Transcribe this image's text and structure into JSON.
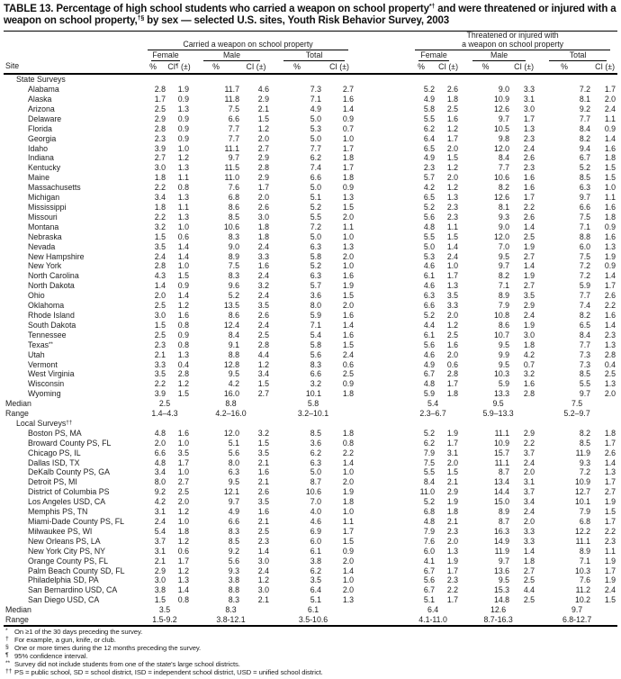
{
  "title": {
    "part1": "TABLE 13. Percentage of high school students who carried a weapon on school property",
    "sup1": "*†",
    "part2": " and were threatened or injured with a weapon on school property,",
    "sup2": "†§",
    "part3": " by sex — selected U.S. sites, Youth Risk Behavior Survey, 2003"
  },
  "header": {
    "site": "Site",
    "groups": [
      {
        "title_lines": [
          "Carried a weapon on school property"
        ],
        "sex": [
          "Female",
          "Male",
          "Total"
        ],
        "cols": [
          "%",
          "CI¶ (±)",
          "%",
          "CI (±)",
          "%",
          "CI (±)"
        ]
      },
      {
        "title_lines": [
          "Threatened or injured with",
          "a weapon on school property"
        ],
        "sex": [
          "Female",
          "Male",
          "Total"
        ],
        "cols": [
          "%",
          "CI (±)",
          "%",
          "CI (±)",
          "%",
          "CI (±)"
        ]
      }
    ]
  },
  "median_label": "Median",
  "range_label": "Range",
  "sections": [
    {
      "label": "State Surveys",
      "rows": [
        [
          "Alabama",
          "2.8",
          "1.9",
          "11.7",
          "4.6",
          "7.3",
          "2.7",
          "5.2",
          "2.6",
          "9.0",
          "3.3",
          "7.2",
          "1.7"
        ],
        [
          "Alaska",
          "1.7",
          "0.9",
          "11.8",
          "2.9",
          "7.1",
          "1.6",
          "4.9",
          "1.8",
          "10.9",
          "3.1",
          "8.1",
          "2.0"
        ],
        [
          "Arizona",
          "2.5",
          "1.3",
          "7.5",
          "2.1",
          "4.9",
          "1.4",
          "5.8",
          "2.5",
          "12.6",
          "3.0",
          "9.2",
          "2.4"
        ],
        [
          "Delaware",
          "2.9",
          "0.9",
          "6.6",
          "1.5",
          "5.0",
          "0.9",
          "5.5",
          "1.6",
          "9.7",
          "1.7",
          "7.7",
          "1.1"
        ],
        [
          "Florida",
          "2.8",
          "0.9",
          "7.7",
          "1.2",
          "5.3",
          "0.7",
          "6.2",
          "1.2",
          "10.5",
          "1.3",
          "8.4",
          "0.9"
        ],
        [
          "Georgia",
          "2.3",
          "0.9",
          "7.7",
          "2.0",
          "5.0",
          "1.0",
          "6.4",
          "1.7",
          "9.8",
          "2.3",
          "8.2",
          "1.4"
        ],
        [
          "Idaho",
          "3.9",
          "1.0",
          "11.1",
          "2.7",
          "7.7",
          "1.7",
          "6.5",
          "2.0",
          "12.0",
          "2.4",
          "9.4",
          "1.6"
        ],
        [
          "Indiana",
          "2.7",
          "1.2",
          "9.7",
          "2.9",
          "6.2",
          "1.8",
          "4.9",
          "1.5",
          "8.4",
          "2.6",
          "6.7",
          "1.8"
        ],
        [
          "Kentucky",
          "3.0",
          "1.3",
          "11.5",
          "2.8",
          "7.4",
          "1.7",
          "2.3",
          "1.2",
          "7.7",
          "2.3",
          "5.2",
          "1.5"
        ],
        [
          "Maine",
          "1.8",
          "1.1",
          "11.0",
          "2.9",
          "6.6",
          "1.8",
          "5.7",
          "2.0",
          "10.6",
          "1.6",
          "8.5",
          "1.5"
        ],
        [
          "Massachusetts",
          "2.2",
          "0.8",
          "7.6",
          "1.7",
          "5.0",
          "0.9",
          "4.2",
          "1.2",
          "8.2",
          "1.6",
          "6.3",
          "1.0"
        ],
        [
          "Michigan",
          "3.4",
          "1.3",
          "6.8",
          "2.0",
          "5.1",
          "1.3",
          "6.5",
          "1.3",
          "12.6",
          "1.7",
          "9.7",
          "1.1"
        ],
        [
          "Mississippi",
          "1.8",
          "1.1",
          "8.6",
          "2.6",
          "5.2",
          "1.5",
          "5.2",
          "2.3",
          "8.1",
          "2.2",
          "6.6",
          "1.6"
        ],
        [
          "Missouri",
          "2.2",
          "1.3",
          "8.5",
          "3.0",
          "5.5",
          "2.0",
          "5.6",
          "2.3",
          "9.3",
          "2.6",
          "7.5",
          "1.8"
        ],
        [
          "Montana",
          "3.2",
          "1.0",
          "10.6",
          "1.8",
          "7.2",
          "1.1",
          "4.8",
          "1.1",
          "9.0",
          "1.4",
          "7.1",
          "0.9"
        ],
        [
          "Nebraska",
          "1.5",
          "0.6",
          "8.3",
          "1.8",
          "5.0",
          "1.0",
          "5.5",
          "1.5",
          "12.0",
          "2.5",
          "8.8",
          "1.6"
        ],
        [
          "Nevada",
          "3.5",
          "1.4",
          "9.0",
          "2.4",
          "6.3",
          "1.3",
          "5.0",
          "1.4",
          "7.0",
          "1.9",
          "6.0",
          "1.3"
        ],
        [
          "New Hampshire",
          "2.4",
          "1.4",
          "8.9",
          "3.3",
          "5.8",
          "2.0",
          "5.3",
          "2.4",
          "9.5",
          "2.7",
          "7.5",
          "1.9"
        ],
        [
          "New York",
          "2.8",
          "1.0",
          "7.5",
          "1.6",
          "5.2",
          "1.0",
          "4.6",
          "1.0",
          "9.7",
          "1.4",
          "7.2",
          "0.9"
        ],
        [
          "North Carolina",
          "4.3",
          "1.5",
          "8.3",
          "2.4",
          "6.3",
          "1.6",
          "6.1",
          "1.7",
          "8.2",
          "1.9",
          "7.2",
          "1.4"
        ],
        [
          "North Dakota",
          "1.4",
          "0.9",
          "9.6",
          "3.2",
          "5.7",
          "1.9",
          "4.6",
          "1.3",
          "7.1",
          "2.7",
          "5.9",
          "1.7"
        ],
        [
          "Ohio",
          "2.0",
          "1.4",
          "5.2",
          "2.4",
          "3.6",
          "1.5",
          "6.3",
          "3.5",
          "8.9",
          "3.5",
          "7.7",
          "2.6"
        ],
        [
          "Oklahoma",
          "2.5",
          "1.2",
          "13.5",
          "3.5",
          "8.0",
          "2.0",
          "6.6",
          "3.3",
          "7.9",
          "2.9",
          "7.4",
          "2.2"
        ],
        [
          "Rhode Island",
          "3.0",
          "1.6",
          "8.6",
          "2.6",
          "5.9",
          "1.6",
          "5.2",
          "2.0",
          "10.8",
          "2.4",
          "8.2",
          "1.6"
        ],
        [
          "South Dakota",
          "1.5",
          "0.8",
          "12.4",
          "2.4",
          "7.1",
          "1.4",
          "4.4",
          "1.2",
          "8.6",
          "1.9",
          "6.5",
          "1.4"
        ],
        [
          "Tennessee",
          "2.5",
          "0.9",
          "8.4",
          "2.5",
          "5.4",
          "1.6",
          "6.1",
          "2.5",
          "10.7",
          "3.0",
          "8.4",
          "2.3"
        ],
        [
          "Texas**",
          "2.3",
          "0.8",
          "9.1",
          "2.8",
          "5.8",
          "1.5",
          "5.6",
          "1.6",
          "9.5",
          "1.8",
          "7.7",
          "1.3"
        ],
        [
          "Utah",
          "2.1",
          "1.3",
          "8.8",
          "4.4",
          "5.6",
          "2.4",
          "4.6",
          "2.0",
          "9.9",
          "4.2",
          "7.3",
          "2.8"
        ],
        [
          "Vermont",
          "3.3",
          "0.4",
          "12.8",
          "1.2",
          "8.3",
          "0.6",
          "4.9",
          "0.6",
          "9.5",
          "0.7",
          "7.3",
          "0.4"
        ],
        [
          "West Virginia",
          "3.5",
          "2.8",
          "9.5",
          "3.4",
          "6.6",
          "2.5",
          "6.7",
          "2.8",
          "10.3",
          "3.2",
          "8.5",
          "2.5"
        ],
        [
          "Wisconsin",
          "2.2",
          "1.2",
          "4.2",
          "1.5",
          "3.2",
          "0.9",
          "4.8",
          "1.7",
          "5.9",
          "1.6",
          "5.5",
          "1.3"
        ],
        [
          "Wyoming",
          "3.9",
          "1.5",
          "16.0",
          "2.7",
          "10.1",
          "1.8",
          "5.9",
          "1.8",
          "13.3",
          "2.8",
          "9.7",
          "2.0"
        ]
      ],
      "median": [
        "2.5",
        "8.8",
        "5.8",
        "5.4",
        "9.5",
        "7.5"
      ],
      "range": [
        "1.4–4.3",
        "4.2–16.0",
        "3.2–10.1",
        "2.3–6.7",
        "5.9–13.3",
        "5.2–9.7"
      ]
    },
    {
      "label": "Local Surveys††",
      "rows": [
        [
          "Boston PS, MA",
          "4.8",
          "1.6",
          "12.0",
          "3.2",
          "8.5",
          "1.8",
          "5.2",
          "1.9",
          "11.1",
          "2.9",
          "8.2",
          "1.8"
        ],
        [
          "Broward County PS, FL",
          "2.0",
          "1.0",
          "5.1",
          "1.5",
          "3.6",
          "0.8",
          "6.2",
          "1.7",
          "10.9",
          "2.2",
          "8.5",
          "1.7"
        ],
        [
          "Chicago PS, IL",
          "6.6",
          "3.5",
          "5.6",
          "3.5",
          "6.2",
          "2.2",
          "7.9",
          "3.1",
          "15.7",
          "3.7",
          "11.9",
          "2.6"
        ],
        [
          "Dallas ISD, TX",
          "4.8",
          "1.7",
          "8.0",
          "2.1",
          "6.3",
          "1.4",
          "7.5",
          "2.0",
          "11.1",
          "2.4",
          "9.3",
          "1.4"
        ],
        [
          "DeKalb County PS, GA",
          "3.4",
          "1.0",
          "6.3",
          "1.6",
          "5.0",
          "1.0",
          "5.5",
          "1.5",
          "8.7",
          "2.0",
          "7.2",
          "1.3"
        ],
        [
          "Detroit PS, MI",
          "8.0",
          "2.7",
          "9.5",
          "2.1",
          "8.7",
          "2.0",
          "8.4",
          "2.1",
          "13.4",
          "3.1",
          "10.9",
          "1.7"
        ],
        [
          "District of Columbia PS",
          "9.2",
          "2.5",
          "12.1",
          "2.6",
          "10.6",
          "1.9",
          "11.0",
          "2.9",
          "14.4",
          "3.7",
          "12.7",
          "2.7"
        ],
        [
          "Los Angeles USD, CA",
          "4.2",
          "2.0",
          "9.7",
          "3.5",
          "7.0",
          "1.8",
          "5.2",
          "1.9",
          "15.0",
          "3.4",
          "10.1",
          "1.9"
        ],
        [
          "Memphis PS, TN",
          "3.1",
          "1.2",
          "4.9",
          "1.6",
          "4.0",
          "1.0",
          "6.8",
          "1.8",
          "8.9",
          "2.4",
          "7.9",
          "1.5"
        ],
        [
          "Miami-Dade County PS, FL",
          "2.4",
          "1.0",
          "6.6",
          "2.1",
          "4.6",
          "1.1",
          "4.8",
          "2.1",
          "8.7",
          "2.0",
          "6.8",
          "1.7"
        ],
        [
          "Milwaukee PS, WI",
          "5.4",
          "1.8",
          "8.3",
          "2.5",
          "6.9",
          "1.7",
          "7.9",
          "2.3",
          "16.3",
          "3.3",
          "12.2",
          "2.2"
        ],
        [
          "New Orleans PS, LA",
          "3.7",
          "1.2",
          "8.5",
          "2.3",
          "6.0",
          "1.5",
          "7.6",
          "2.0",
          "14.9",
          "3.3",
          "11.1",
          "2.3"
        ],
        [
          "New York City PS, NY",
          "3.1",
          "0.6",
          "9.2",
          "1.4",
          "6.1",
          "0.9",
          "6.0",
          "1.3",
          "11.9",
          "1.4",
          "8.9",
          "1.1"
        ],
        [
          "Orange County PS, FL",
          "2.1",
          "1.7",
          "5.6",
          "3.0",
          "3.8",
          "2.0",
          "4.1",
          "1.9",
          "9.7",
          "1.8",
          "7.1",
          "1.9"
        ],
        [
          "Palm Beach County SD, FL",
          "2.9",
          "1.2",
          "9.3",
          "2.4",
          "6.2",
          "1.4",
          "6.7",
          "1.7",
          "13.6",
          "2.7",
          "10.3",
          "1.7"
        ],
        [
          "Philadelphia SD, PA",
          "3.0",
          "1.3",
          "3.8",
          "1.2",
          "3.5",
          "1.0",
          "5.6",
          "2.3",
          "9.5",
          "2.5",
          "7.6",
          "1.9"
        ],
        [
          "San Bernardino USD, CA",
          "3.8",
          "1.4",
          "8.8",
          "3.0",
          "6.4",
          "2.0",
          "6.7",
          "2.2",
          "15.3",
          "4.4",
          "11.2",
          "2.4"
        ],
        [
          "San Diego USD, CA",
          "1.5",
          "0.8",
          "8.3",
          "2.1",
          "5.1",
          "1.3",
          "5.1",
          "1.7",
          "14.8",
          "2.5",
          "10.2",
          "1.5"
        ]
      ],
      "median": [
        "3.5",
        "8.3",
        "6.1",
        "6.4",
        "12.6",
        "9.7"
      ],
      "range": [
        "1.5-9.2",
        "3.8-12.1",
        "3.5-10.6",
        "4.1-11.0",
        "8.7-16.3",
        "6.8-12.7"
      ]
    }
  ],
  "footnotes": [
    {
      "marker": "*",
      "text": "On ≥1 of the 30 days preceding the survey."
    },
    {
      "marker": "†",
      "text": "For example, a gun, knife, or club."
    },
    {
      "marker": "§",
      "text": "One or more times during the 12 months preceding the survey."
    },
    {
      "marker": "¶",
      "text": "95% confidence interval."
    },
    {
      "marker": "**",
      "text": "Survey did not include students from one of the state's large school districts."
    },
    {
      "marker": "††",
      "text": "PS = public school, SD = school district, ISD = independent school district, USD = unified school district."
    }
  ]
}
